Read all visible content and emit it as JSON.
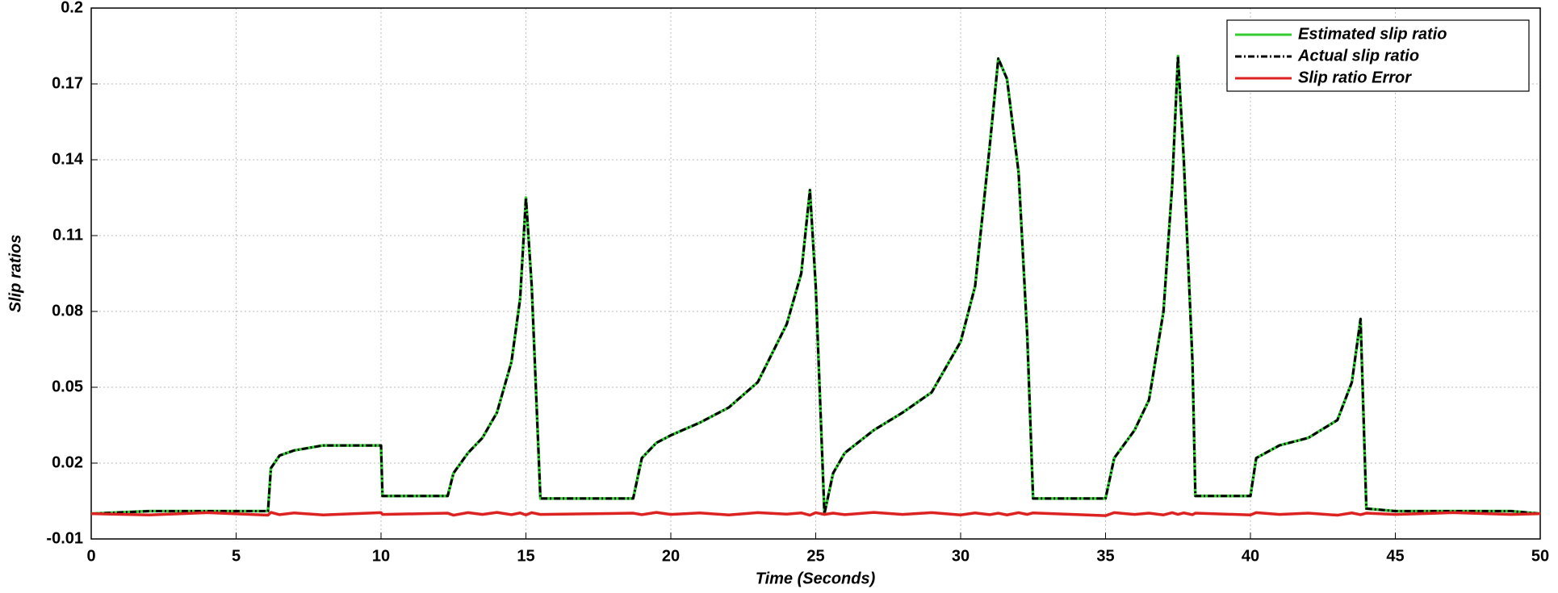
{
  "chart_data": {
    "type": "line",
    "x_label": "Time (Seconds)",
    "y_label": "Slip ratios",
    "x": [
      0,
      2,
      4,
      6.1,
      6.2,
      6.5,
      7,
      8,
      10,
      10.05,
      12.3,
      12.5,
      13,
      13.5,
      14,
      14.5,
      14.8,
      15,
      15.2,
      15.5,
      18.7,
      19,
      19.5,
      20,
      21,
      22,
      23,
      24,
      24.5,
      24.8,
      25,
      25.3,
      25.6,
      26,
      27,
      28,
      29,
      30,
      30.5,
      31,
      31.3,
      31.6,
      32,
      32.3,
      32.5,
      35,
      35.3,
      36,
      36.5,
      37,
      37.3,
      37.5,
      37.7,
      38,
      38.1,
      40,
      40.2,
      41,
      42,
      43,
      43.5,
      43.8,
      44,
      45,
      47,
      49,
      50
    ],
    "series": [
      {
        "name": "Estimated slip ratio",
        "color": "#33cc33",
        "dash": false,
        "values": [
          0,
          0.001,
          0.001,
          0.001,
          0.018,
          0.023,
          0.025,
          0.027,
          0.027,
          0.007,
          0.007,
          0.016,
          0.024,
          0.03,
          0.04,
          0.06,
          0.085,
          0.125,
          0.09,
          0.006,
          0.006,
          0.022,
          0.028,
          0.031,
          0.036,
          0.042,
          0.052,
          0.075,
          0.095,
          0.128,
          0.09,
          0,
          0.016,
          0.024,
          0.033,
          0.04,
          0.048,
          0.068,
          0.09,
          0.145,
          0.18,
          0.172,
          0.135,
          0.07,
          0.006,
          0.006,
          0.022,
          0.033,
          0.045,
          0.08,
          0.13,
          0.181,
          0.14,
          0.06,
          0.007,
          0.007,
          0.022,
          0.027,
          0.03,
          0.037,
          0.052,
          0.077,
          0.002,
          0.001,
          0.001,
          0.001,
          0
        ]
      },
      {
        "name": "Actual slip ratio",
        "color": "#000000",
        "dash": true,
        "values": [
          0,
          0.001,
          0.001,
          0.001,
          0.018,
          0.023,
          0.025,
          0.027,
          0.027,
          0.007,
          0.007,
          0.016,
          0.024,
          0.03,
          0.04,
          0.06,
          0.085,
          0.125,
          0.09,
          0.006,
          0.006,
          0.022,
          0.028,
          0.031,
          0.036,
          0.042,
          0.052,
          0.075,
          0.095,
          0.128,
          0.09,
          0,
          0.016,
          0.024,
          0.033,
          0.04,
          0.048,
          0.068,
          0.09,
          0.145,
          0.18,
          0.172,
          0.135,
          0.07,
          0.006,
          0.006,
          0.022,
          0.033,
          0.045,
          0.08,
          0.13,
          0.181,
          0.14,
          0.06,
          0.007,
          0.007,
          0.022,
          0.027,
          0.03,
          0.037,
          0.052,
          0.077,
          0.002,
          0.001,
          0.001,
          0.001,
          0
        ]
      },
      {
        "name": "Slip ratio Error",
        "color": "#dd2222",
        "dash": false,
        "values": [
          0,
          -0.0005,
          0.0004,
          -0.0006,
          0.0005,
          -0.0004,
          0.0003,
          -0.0005,
          0.0004,
          -0.0003,
          0.0002,
          -0.0006,
          0.0004,
          -0.0003,
          0.0005,
          -0.0004,
          0.0003,
          -0.0005,
          0.0004,
          -0.0003,
          0.0002,
          -0.0004,
          0.0005,
          -0.0003,
          0.0003,
          -0.0005,
          0.0004,
          -0.0002,
          0.0003,
          -0.0006,
          0.0004,
          -0.0003,
          0.0002,
          -0.0004,
          0.0005,
          -0.0003,
          0.0004,
          -0.0005,
          0.0003,
          -0.0004,
          0.0002,
          -0.0005,
          0.0004,
          -0.0003,
          0.0003,
          -0.0008,
          0.0004,
          -0.0003,
          0.0002,
          -0.0005,
          0.0004,
          -0.0003,
          0.0003,
          -0.0004,
          0.0002,
          -0.0005,
          0.0004,
          -0.0003,
          0.0002,
          -0.0006,
          0.0003,
          -0.0004,
          0.0002,
          -0.0003,
          0.0004,
          -0.0003,
          0
        ]
      }
    ],
    "xlim": [
      0,
      50
    ],
    "xticks": [
      0,
      5,
      10,
      15,
      20,
      25,
      30,
      35,
      40,
      45,
      50
    ],
    "ylim": [
      -0.01,
      0.2
    ],
    "yticks": [
      -0.01,
      0.02,
      0.05,
      0.08,
      0.11,
      0.14,
      0.17,
      0.2
    ],
    "grid": true,
    "legend": "top-right"
  }
}
